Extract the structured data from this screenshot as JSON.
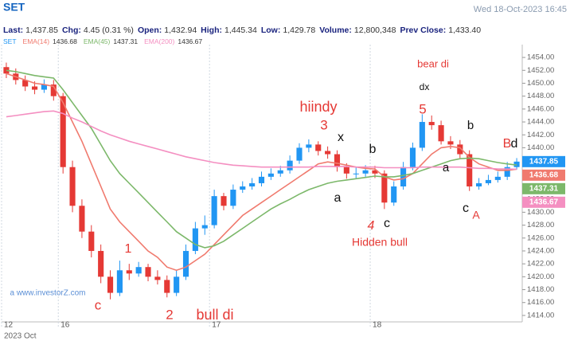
{
  "chart_data": {
    "type": "candlestick",
    "title": "SET",
    "subtitle": "Wed 18-Oct-2023 16:45",
    "stats": [
      {
        "label": "Last:",
        "value": "1,437.85"
      },
      {
        "label": "Chg:",
        "value": "4.45 (0.31 %)"
      },
      {
        "label": "Open:",
        "value": "1,432.94"
      },
      {
        "label": "High:",
        "value": "1,445.34"
      },
      {
        "label": "Low:",
        "value": "1,429.78"
      },
      {
        "label": "Volume:",
        "value": "12,800,348"
      },
      {
        "label": "Prev Close:",
        "value": "1,433.40"
      }
    ],
    "last_label": "1437.85",
    "up_color": "#2196f3",
    "down_color": "#e53935",
    "open": [
      1452.5,
      1451.5,
      1450.5,
      1449.5,
      1449,
      1449.8,
      1448,
      1437,
      1431,
      1427,
      1424,
      1420,
      1417.5,
      1421,
      1420.5,
      1421.5,
      1420,
      1419.5,
      1417.5,
      1420,
      1424,
      1427.5,
      1428,
      1432.5,
      1431,
      1433.5,
      1434,
      1434.5,
      1435.5,
      1436,
      1436.5,
      1438,
      1440,
      1440.5,
      1439.5,
      1439,
      1437,
      1436,
      1436,
      1436.5,
      1436,
      1431.5,
      1434,
      1437,
      1440,
      1444,
      1443.5,
      1441,
      1440.5,
      1439,
      1434,
      1434.5,
      1435,
      1435.5,
      1437
    ],
    "high": [
      1453.2,
      1452.3,
      1451.2,
      1450.3,
      1450.6,
      1450.5,
      1448.5,
      1438,
      1432,
      1428,
      1425,
      1421,
      1422.5,
      1422,
      1422.3,
      1422,
      1421,
      1420.2,
      1421,
      1425,
      1428.5,
      1429.5,
      1433.5,
      1433,
      1434.3,
      1434.8,
      1435.3,
      1436.3,
      1436.8,
      1437.2,
      1438.8,
      1440.7,
      1441.3,
      1441,
      1440.2,
      1439.6,
      1437.6,
      1437,
      1437.3,
      1437.2,
      1436.5,
      1434.8,
      1437.8,
      1440.8,
      1445.2,
      1445,
      1444.2,
      1441.8,
      1441.2,
      1439.6,
      1435.3,
      1435.8,
      1436.3,
      1437.8,
      1438.4
    ],
    "low": [
      1450.8,
      1449.8,
      1448.8,
      1448.3,
      1448.5,
      1447.3,
      1436,
      1430,
      1426,
      1423,
      1419,
      1416.5,
      1417,
      1419.5,
      1420,
      1419.3,
      1418.8,
      1416.8,
      1417,
      1419.5,
      1423.5,
      1426.5,
      1427.5,
      1430.3,
      1430.5,
      1433,
      1433.5,
      1434,
      1435,
      1435.5,
      1436,
      1437.5,
      1439.3,
      1438.8,
      1438.3,
      1436.3,
      1435.2,
      1435.3,
      1435.5,
      1435.3,
      1430.5,
      1431,
      1433.5,
      1436.5,
      1439.5,
      1442.8,
      1440.5,
      1439.8,
      1438.4,
      1433.3,
      1433.5,
      1434.2,
      1434.6,
      1435,
      1436.6
    ],
    "close": [
      1451.5,
      1450.5,
      1449.5,
      1449,
      1449.8,
      1448,
      1437,
      1431,
      1427,
      1424,
      1420,
      1417.5,
      1421,
      1420.5,
      1421.5,
      1420,
      1419.5,
      1417.5,
      1420,
      1424,
      1427.5,
      1428,
      1432.5,
      1431,
      1433.5,
      1434,
      1434.5,
      1435.5,
      1436,
      1436.5,
      1438,
      1440,
      1440.5,
      1439.5,
      1439,
      1437,
      1436,
      1436,
      1436.5,
      1436,
      1431.5,
      1434,
      1437,
      1440,
      1444,
      1443.5,
      1441,
      1440.5,
      1439,
      1434,
      1434.5,
      1435,
      1435.5,
      1437,
      1437.85
    ],
    "series": [
      {
        "name": "EMA(14)",
        "color": "#f07a6e",
        "last_label": "1436.68",
        "values": [
          1451.5,
          1451,
          1450.5,
          1450,
          1449.8,
          1449.5,
          1447,
          1444,
          1441,
          1437.5,
          1434,
          1430.5,
          1428.5,
          1427,
          1425.5,
          1424,
          1423,
          1421.5,
          1421,
          1421.5,
          1422.5,
          1423.5,
          1425,
          1426.5,
          1428,
          1429.5,
          1430.5,
          1431.5,
          1432.5,
          1433.5,
          1434.5,
          1435.5,
          1436.5,
          1437.5,
          1437.8,
          1437.6,
          1437.3,
          1437,
          1436.8,
          1436.7,
          1435.5,
          1435,
          1435.2,
          1436,
          1437.5,
          1439,
          1440,
          1440.2,
          1440,
          1438.5,
          1437.5,
          1437,
          1436.5,
          1436.5,
          1436.68
        ]
      },
      {
        "name": "EMA(45)",
        "color": "#7cb86a",
        "last_label": "1437.31",
        "values": [
          1452,
          1451.8,
          1451.5,
          1451.2,
          1451,
          1450.8,
          1449,
          1447,
          1445,
          1443,
          1440.5,
          1438,
          1436,
          1434.5,
          1433,
          1431.5,
          1430,
          1428.5,
          1427,
          1426,
          1425,
          1424.5,
          1424.8,
          1425.5,
          1426.5,
          1427.5,
          1428.5,
          1429.5,
          1430.5,
          1431.3,
          1432,
          1432.8,
          1433.5,
          1434,
          1434.5,
          1434.8,
          1435,
          1435.2,
          1435.4,
          1435.6,
          1435.5,
          1435.5,
          1435.7,
          1436,
          1436.5,
          1437,
          1437.5,
          1438,
          1438.3,
          1438.4,
          1438.3,
          1438,
          1437.7,
          1437.5,
          1437.31
        ]
      },
      {
        "name": "EMA(200)",
        "color": "#f48fc1",
        "last_label": "1436.67",
        "values": [
          1444.8,
          1445,
          1445.2,
          1445.4,
          1445.6,
          1445.7,
          1445.3,
          1444.6,
          1444,
          1443.3,
          1442.6,
          1442,
          1441.5,
          1441,
          1440.6,
          1440.2,
          1439.8,
          1439.4,
          1439,
          1438.6,
          1438.3,
          1438,
          1437.7,
          1437.5,
          1437.3,
          1437.2,
          1437.1,
          1437,
          1437,
          1437,
          1437,
          1437,
          1437,
          1437.1,
          1437.1,
          1437.1,
          1437.1,
          1437,
          1437,
          1437,
          1436.9,
          1436.9,
          1436.9,
          1436.9,
          1437,
          1437,
          1437,
          1437,
          1437,
          1436.9,
          1436.8,
          1436.8,
          1436.7,
          1436.7,
          1436.67
        ]
      }
    ],
    "xlim": [
      0,
      55
    ],
    "xticks": [
      {
        "value": 0,
        "label": "12"
      },
      {
        "value": 6,
        "label": "16"
      },
      {
        "value": 22,
        "label": "17"
      },
      {
        "value": 39,
        "label": "18"
      }
    ],
    "x_label": "2023 Oct",
    "ylim": [
      1413,
      1455
    ],
    "yticks": [
      {
        "value": 1414,
        "label": "1414.00"
      },
      {
        "value": 1416,
        "label": "1416.00"
      },
      {
        "value": 1418,
        "label": "1418.00"
      },
      {
        "value": 1420,
        "label": "1420.00"
      },
      {
        "value": 1422,
        "label": "1422.00"
      },
      {
        "value": 1424,
        "label": "1424.00"
      },
      {
        "value": 1426,
        "label": "1426.00"
      },
      {
        "value": 1428,
        "label": "1428.00"
      },
      {
        "value": 1430,
        "label": "1430.00"
      },
      {
        "value": 1432,
        "label": "1432.00"
      },
      {
        "value": 1434,
        "label": "1434.00"
      },
      {
        "value": 1436,
        "label": "1436.00"
      },
      {
        "value": 1438,
        "label": "1438.00"
      },
      {
        "value": 1440,
        "label": "1440.00"
      },
      {
        "value": 1442,
        "label": "1442.00"
      },
      {
        "value": 1444,
        "label": "1444.00"
      },
      {
        "value": 1446,
        "label": "1446.00"
      },
      {
        "value": 1448,
        "label": "1448.00"
      },
      {
        "value": 1450,
        "label": "1450.00"
      },
      {
        "value": 1452,
        "label": "1452.00"
      },
      {
        "value": 1454,
        "label": "1454.00"
      }
    ],
    "annotations": [
      {
        "text": "hiindy",
        "color": "#e53935"
      },
      {
        "text": "3",
        "color": "#e53935"
      },
      {
        "text": "x",
        "color": "#111111"
      },
      {
        "text": "b",
        "color": "#111111"
      },
      {
        "text": "a",
        "color": "#111111"
      },
      {
        "text": "4",
        "color": "#e53935"
      },
      {
        "text": "c",
        "color": "#111111"
      },
      {
        "text": "Hidden bull",
        "color": "#e53935"
      },
      {
        "text": "bear di",
        "color": "#e53935"
      },
      {
        "text": "dx",
        "color": "#111111"
      },
      {
        "text": "5",
        "color": "#e53935"
      },
      {
        "text": "b",
        "color": "#111111"
      },
      {
        "text": "a",
        "color": "#111111"
      },
      {
        "text": "B",
        "color": "#e53935"
      },
      {
        "text": "d",
        "color": "#111111"
      },
      {
        "text": "c",
        "color": "#111111"
      },
      {
        "text": "A",
        "color": "#e53935"
      },
      {
        "text": "1",
        "color": "#e53935"
      },
      {
        "text": "c",
        "color": "#e53935"
      },
      {
        "text": "2",
        "color": "#e53935"
      },
      {
        "text": "bull di",
        "color": "#e53935"
      },
      {
        "text": "a www.investorZ.com",
        "color": "#5b8fd6"
      }
    ]
  }
}
